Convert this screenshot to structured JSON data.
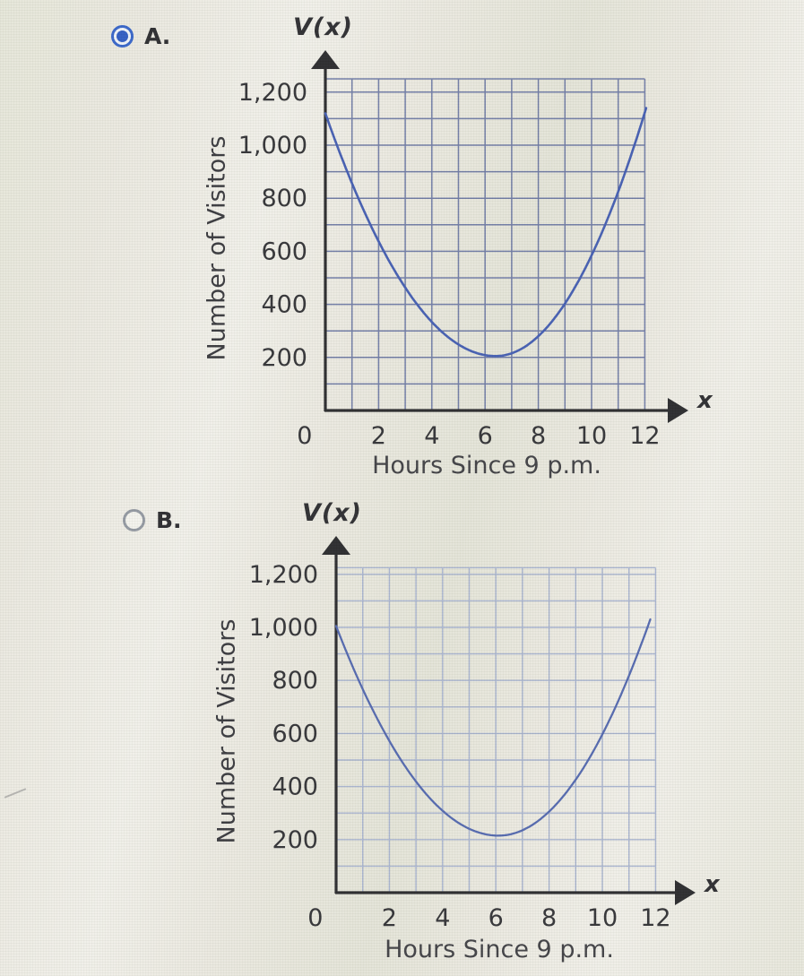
{
  "page": {
    "background_color": "#e9e7de",
    "text_color": "#2a2a2e",
    "radio_selected_color": "#2c5cc6"
  },
  "options": [
    {
      "label": "A.",
      "selected": true
    },
    {
      "label": "B.",
      "selected": false
    }
  ],
  "chart_data": [
    {
      "type": "line",
      "title": "V(x)",
      "xlabel": "Hours Since 9 p.m.",
      "ylabel": "Number of Visitors",
      "x_arrow_label": "x",
      "xlim": [
        0,
        12
      ],
      "ylim": [
        0,
        1250
      ],
      "grid": true,
      "grid_step_x": 1,
      "grid_step_y": 100,
      "x_ticks": {
        "values": [
          0,
          2,
          4,
          6,
          8,
          10,
          12
        ],
        "labels": [
          "0",
          "2",
          "4",
          "6",
          "8",
          "10",
          "12"
        ]
      },
      "y_ticks": {
        "values": [
          200,
          400,
          600,
          800,
          1000,
          1200
        ],
        "labels": [
          "200",
          "400",
          "600",
          "800",
          "1,000",
          "1,200"
        ]
      },
      "series": [
        {
          "name": "V(x)",
          "shape": "upward-parabola",
          "start": [
            0,
            1120
          ],
          "vertex": [
            6.4,
            205
          ],
          "end": [
            12.05,
            1140
          ]
        }
      ],
      "colors": {
        "grid": "#6874a0",
        "curve": "#3a55ae",
        "axis": "#1f1f22"
      }
    },
    {
      "type": "line",
      "title": "V(x)",
      "xlabel": "Hours Since 9 p.m.",
      "ylabel": "Number of Visitors",
      "x_arrow_label": "x",
      "xlim": [
        0,
        12
      ],
      "ylim": [
        0,
        1225
      ],
      "grid": true,
      "grid_step_x": 1,
      "grid_step_y": 100,
      "x_ticks": {
        "values": [
          0,
          2,
          4,
          6,
          8,
          10,
          12
        ],
        "labels": [
          "0",
          "2",
          "4",
          "6",
          "8",
          "10",
          "12"
        ]
      },
      "y_ticks": {
        "values": [
          200,
          400,
          600,
          800,
          1000,
          1200
        ],
        "labels": [
          "200",
          "400",
          "600",
          "800",
          "1,000",
          "1,200"
        ]
      },
      "series": [
        {
          "name": "V(x)",
          "shape": "upward-parabola",
          "start": [
            0,
            1005
          ],
          "vertex": [
            6.1,
            215
          ],
          "end": [
            11.8,
            1030
          ]
        }
      ],
      "colors": {
        "grid": "#a2aecb",
        "curve": "#4a60ab",
        "axis": "#1f1f22"
      }
    }
  ]
}
